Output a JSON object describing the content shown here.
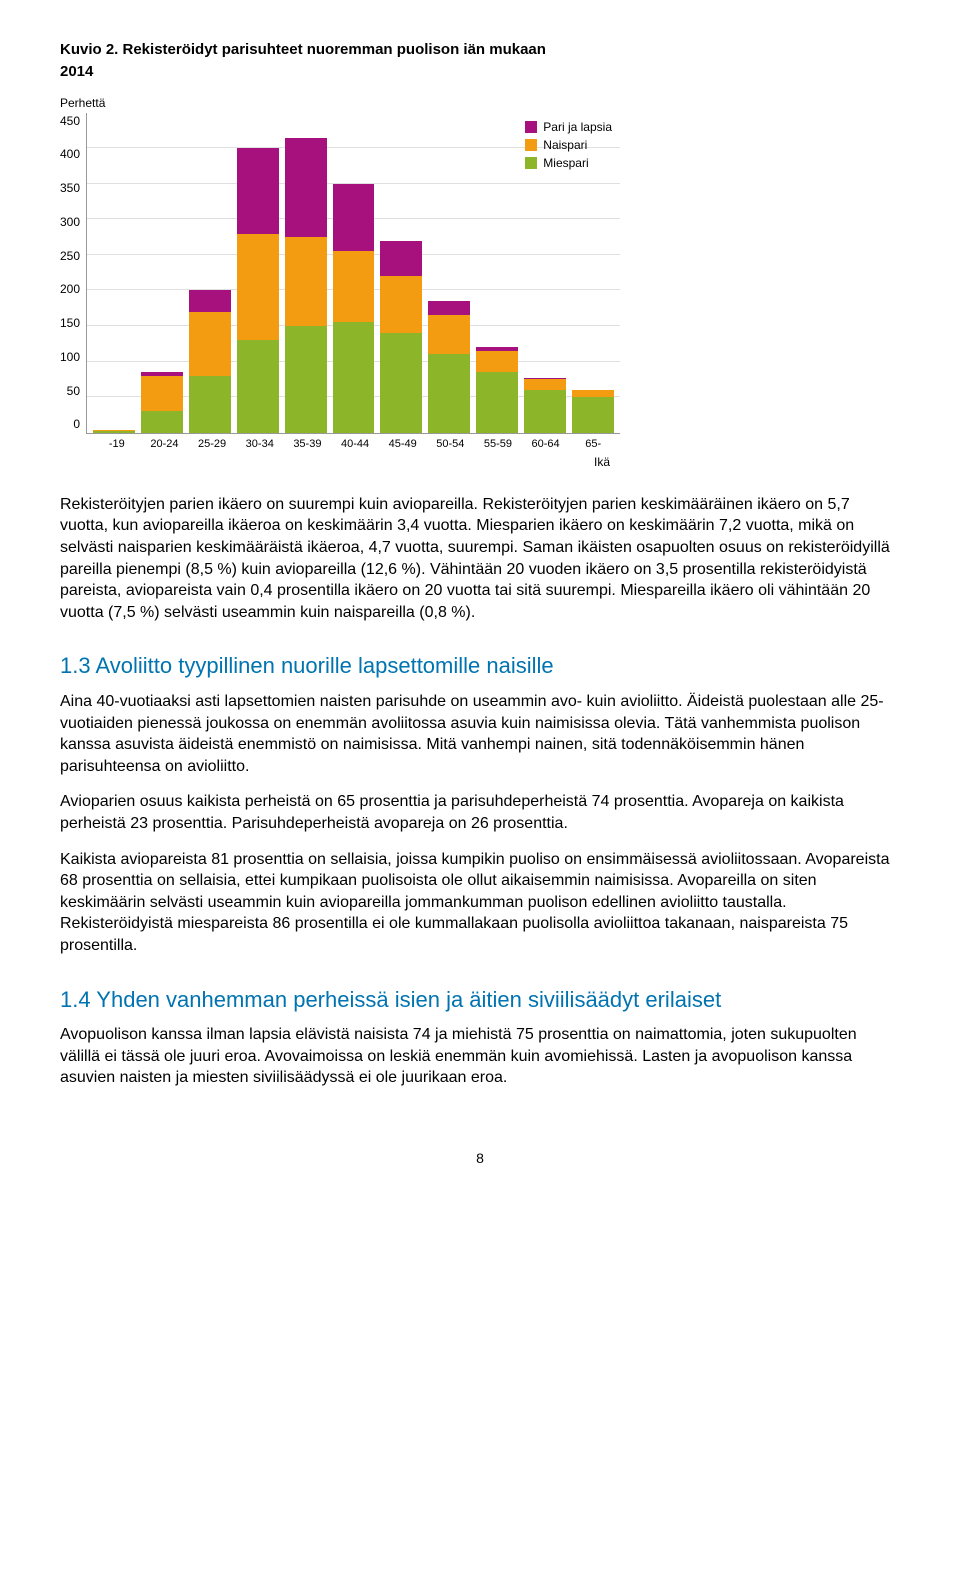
{
  "figure": {
    "caption": "Kuvio 2. Rekisteröidyt parisuhteet nuoremman puolison iän mukaan",
    "year": "2014",
    "chart": {
      "type": "stacked-bar",
      "y_title": "Perhettä",
      "x_title": "Ikä",
      "ymax": 450,
      "ytick_step": 50,
      "yticks": [
        "450",
        "400",
        "350",
        "300",
        "250",
        "200",
        "150",
        "100",
        "50",
        "0"
      ],
      "categories": [
        "-19",
        "20-24",
        "25-29",
        "30-34",
        "35-39",
        "40-44",
        "45-49",
        "50-54",
        "55-59",
        "60-64",
        "65-"
      ],
      "series": [
        {
          "key": "miespari",
          "label": "Miespari",
          "color": "#8cb52a"
        },
        {
          "key": "naispari",
          "label": "Naispari",
          "color": "#f39c12"
        },
        {
          "key": "pari_ja_lapsia",
          "label": "Pari ja lapsia",
          "color": "#a6117e"
        }
      ],
      "legend_order": [
        "pari_ja_lapsia",
        "naispari",
        "miespari"
      ],
      "values": {
        "miespari": [
          2,
          30,
          80,
          130,
          150,
          155,
          140,
          110,
          85,
          60,
          50
        ],
        "naispari": [
          2,
          50,
          90,
          150,
          125,
          100,
          80,
          55,
          30,
          15,
          10
        ],
        "pari_ja_lapsia": [
          0,
          5,
          30,
          120,
          140,
          95,
          50,
          20,
          5,
          2,
          0
        ]
      },
      "grid_color": "#e0e0e0",
      "axis_color": "#999999",
      "background": "#ffffff"
    }
  },
  "paragraphs": {
    "p1": "Rekisteröityjen parien ikäero on suurempi kuin aviopareilla. Rekisteröityjen parien keskimääräinen ikäero on 5,7 vuotta, kun aviopareilla ikäeroa on keskimäärin 3,4 vuotta. Miesparien ikäero on keskimäärin 7,2 vuotta, mikä on selvästi naisparien keskimääräistä ikäeroa, 4,7 vuotta, suurempi. Saman ikäisten osapuolten osuus on rekisteröidyillä pareilla pienempi (8,5 %) kuin aviopareilla (12,6 %). Vähintään 20 vuoden ikäero on 3,5 prosentilla rekisteröidyistä pareista, aviopareista vain 0,4 prosentilla ikäero on 20 vuotta tai sitä suurempi. Miespareilla ikäero oli vähintään 20 vuotta (7,5 %) selvästi useammin kuin naispareilla (0,8 %).",
    "p2": "Aina 40-vuotiaaksi asti lapsettomien naisten parisuhde on useammin avo- kuin avioliitto. Äideistä puolestaan alle 25-vuotiaiden pienessä joukossa on enemmän avoliitossa asuvia kuin naimisissa olevia. Tätä vanhemmista puolison kanssa asuvista äideistä enemmistö on naimisissa. Mitä vanhempi nainen, sitä todennäköisemmin hänen parisuhteensa on avioliitto.",
    "p3": "Avioparien osuus kaikista perheistä on 65 prosenttia ja parisuhdeperheistä 74 prosenttia. Avopareja on kaikista perheistä 23 prosenttia. Parisuhdeperheistä avopareja on 26 prosenttia.",
    "p4": "Kaikista aviopareista 81 prosenttia on sellaisia, joissa kumpikin puoliso on ensimmäisessä avioliitossaan. Avopareista 68 prosenttia on sellaisia, ettei kumpikaan puolisoista ole ollut aikaisemmin naimisissa. Avopareilla on siten keskimäärin selvästi useammin kuin aviopareilla jommankumman puolison edellinen avioliitto taustalla. Rekisteröidyistä miespareista 86 prosentilla ei ole kummallakaan puolisolla avioliittoa takanaan, naispareista 75 prosentilla.",
    "p5": "Avopuolison kanssa ilman lapsia elävistä naisista 74 ja miehistä 75 prosenttia on naimattomia, joten sukupuolten välillä ei tässä ole juuri eroa. Avovaimoissa on leskiä enemmän kuin avomiehissä. Lasten ja avopuolison kanssa asuvien naisten ja miesten siviilisäädyssä ei ole juurikaan eroa."
  },
  "headings": {
    "h13": "1.3 Avoliitto tyypillinen nuorille lapsettomille naisille",
    "h14": "1.4 Yhden vanhemman perheissä isien ja äitien siviilisäädyt erilaiset"
  },
  "page_number": "8"
}
